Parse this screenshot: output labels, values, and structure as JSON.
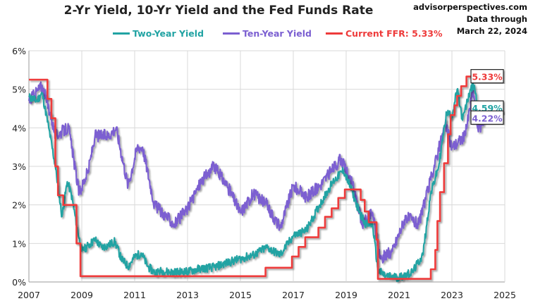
{
  "header": {
    "source": "advisorperspectives.com",
    "data_through_label": "Data through",
    "data_through_date": "March 22, 2024"
  },
  "colors": {
    "two_year": "#21A3A3",
    "ten_year": "#7B5FD1",
    "ffr": "#EE3B3B"
  },
  "chart_data": {
    "type": "line",
    "title": "2-Yr Yield, 10-Yr Yield and the Fed Funds Rate",
    "xlabel": "",
    "ylabel": "",
    "xlim": [
      2007,
      2025
    ],
    "ylim": [
      0,
      6
    ],
    "grid": true,
    "legend_position": "top",
    "x_ticks": [
      "2007",
      "2009",
      "2011",
      "2013",
      "2015",
      "2017",
      "2019",
      "2021",
      "2023",
      "2025"
    ],
    "y_ticks": [
      "0%",
      "1%",
      "2%",
      "3%",
      "4%",
      "5%",
      "6%"
    ],
    "series": [
      {
        "name": "Two-Year Yield",
        "end_label": "4.59%",
        "x": [
          2007,
          2007.3,
          2007.5,
          2007.75,
          2008,
          2008.25,
          2008.45,
          2008.6,
          2008.8,
          2009,
          2009.25,
          2009.5,
          2009.75,
          2010,
          2010.25,
          2010.5,
          2010.75,
          2011,
          2011.25,
          2011.5,
          2011.75,
          2012,
          2012.5,
          2013,
          2013.5,
          2014,
          2014.5,
          2015,
          2015.5,
          2016,
          2016.5,
          2017,
          2017.5,
          2018,
          2018.5,
          2018.9,
          2019.25,
          2019.5,
          2019.75,
          2020,
          2020.2,
          2020.5,
          2021,
          2021.5,
          2021.9,
          2022.2,
          2022.5,
          2022.8,
          2023,
          2023.2,
          2023.4,
          2023.7,
          2023.85,
          2024,
          2024.2
        ],
        "y": [
          4.8,
          4.7,
          4.9,
          4.0,
          3.0,
          1.7,
          2.6,
          2.3,
          1.5,
          0.8,
          0.95,
          1.1,
          0.9,
          0.95,
          1.05,
          0.6,
          0.4,
          0.65,
          0.75,
          0.4,
          0.25,
          0.28,
          0.25,
          0.27,
          0.35,
          0.38,
          0.5,
          0.6,
          0.7,
          0.9,
          0.7,
          1.2,
          1.35,
          2.0,
          2.6,
          2.9,
          2.3,
          1.8,
          1.5,
          1.5,
          0.3,
          0.15,
          0.12,
          0.25,
          0.7,
          2.3,
          3.0,
          4.4,
          4.3,
          5.0,
          4.2,
          5.0,
          5.1,
          4.3,
          4.59
        ]
      },
      {
        "name": "Ten-Year Yield",
        "end_label": "4.22%",
        "x": [
          2007,
          2007.5,
          2007.8,
          2008,
          2008.5,
          2008.9,
          2009.25,
          2009.5,
          2010,
          2010.3,
          2010.75,
          2011.1,
          2011.3,
          2011.75,
          2012.5,
          2013,
          2013.5,
          2014,
          2014.5,
          2015,
          2015.5,
          2016,
          2016.5,
          2017,
          2017.5,
          2018,
          2018.8,
          2019.25,
          2019.6,
          2020,
          2020.3,
          2020.75,
          2021.25,
          2021.75,
          2022.25,
          2022.75,
          2023,
          2023.5,
          2023.8,
          2024,
          2024.2
        ],
        "y": [
          4.7,
          5.1,
          4.4,
          3.8,
          4.0,
          2.3,
          2.9,
          3.8,
          3.8,
          4.0,
          2.5,
          3.5,
          3.5,
          2.0,
          1.5,
          1.9,
          2.6,
          3.0,
          2.5,
          1.8,
          2.3,
          2.0,
          1.4,
          2.5,
          2.2,
          2.5,
          3.2,
          2.5,
          1.5,
          1.8,
          0.6,
          0.8,
          1.7,
          1.5,
          2.8,
          4.1,
          3.5,
          3.8,
          5.0,
          3.9,
          4.22
        ]
      },
      {
        "name": "Current FFR: 5.33%",
        "end_label": "5.33%",
        "step": true,
        "x": [
          2007,
          2007.7,
          2007.85,
          2008,
          2008.1,
          2008.3,
          2008.8,
          2008.95,
          2015.95,
          2016.95,
          2017.2,
          2017.45,
          2017.95,
          2018.2,
          2018.45,
          2018.7,
          2018.95,
          2019.55,
          2019.7,
          2019.85,
          2020.15,
          2020.2,
          2022.2,
          2022.37,
          2022.45,
          2022.55,
          2022.7,
          2022.85,
          2022.95,
          2023.1,
          2023.2,
          2023.35,
          2023.55,
          2024.2
        ],
        "y": [
          5.25,
          4.75,
          4.25,
          3.0,
          2.25,
          2.0,
          1.0,
          0.15,
          0.37,
          0.66,
          0.91,
          1.16,
          1.41,
          1.69,
          1.91,
          2.18,
          2.4,
          2.13,
          1.83,
          1.55,
          1.1,
          0.08,
          0.33,
          0.83,
          1.58,
          2.33,
          3.08,
          3.83,
          4.33,
          4.58,
          4.83,
          5.08,
          5.33,
          5.33
        ]
      }
    ]
  }
}
